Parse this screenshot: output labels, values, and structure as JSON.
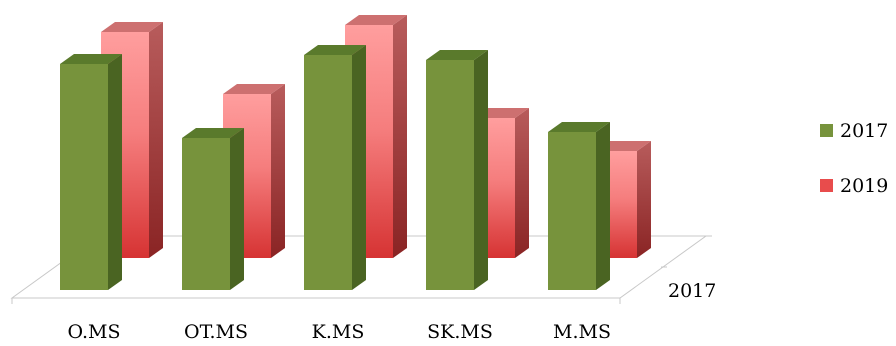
{
  "chart_data": {
    "type": "bar",
    "title": "",
    "xlabel": "",
    "ylabel": "",
    "categories": [
      "O.MS",
      "OT.MS",
      "K.MS",
      "SK.MS",
      "M.MS"
    ],
    "series": [
      {
        "name": "2017",
        "values": [
          226,
          152,
          235,
          230,
          158
        ],
        "color": "#77933c"
      },
      {
        "name": "2019",
        "values": [
          226,
          164,
          233,
          140,
          107
        ],
        "color": "#e84c4c"
      }
    ],
    "depth_axis_label": "2017",
    "legend_position": "right",
    "grid": false
  }
}
